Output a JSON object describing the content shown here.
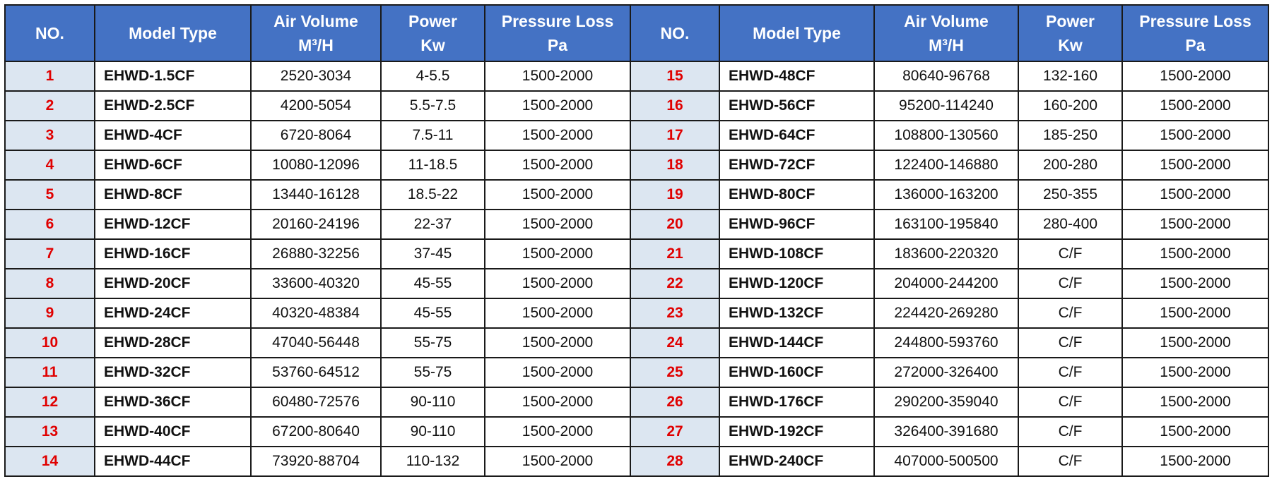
{
  "table": {
    "headers": [
      {
        "line1": "NO."
      },
      {
        "line1": "Model Type"
      },
      {
        "line1": "Air Volume",
        "line2": "M³/H"
      },
      {
        "line1": "Power",
        "line2": "Kw"
      },
      {
        "line1": "Pressure Loss",
        "line2": "Pa"
      },
      {
        "line1": "NO."
      },
      {
        "line1": "Model Type"
      },
      {
        "line1": "Air Volume",
        "line2": "M³/H"
      },
      {
        "line1": "Power",
        "line2": "Kw"
      },
      {
        "line1": "Pressure Loss",
        "line2": "Pa"
      }
    ],
    "rows": [
      [
        "1",
        "EHWD-1.5CF",
        "2520-3034",
        "4-5.5",
        "1500-2000",
        "15",
        "EHWD-48CF",
        "80640-96768",
        "132-160",
        "1500-2000"
      ],
      [
        "2",
        "EHWD-2.5CF",
        "4200-5054",
        "5.5-7.5",
        "1500-2000",
        "16",
        "EHWD-56CF",
        "95200-114240",
        "160-200",
        "1500-2000"
      ],
      [
        "3",
        "EHWD-4CF",
        "6720-8064",
        "7.5-11",
        "1500-2000",
        "17",
        "EHWD-64CF",
        "108800-130560",
        "185-250",
        "1500-2000"
      ],
      [
        "4",
        "EHWD-6CF",
        "10080-12096",
        "11-18.5",
        "1500-2000",
        "18",
        "EHWD-72CF",
        "122400-146880",
        "200-280",
        "1500-2000"
      ],
      [
        "5",
        "EHWD-8CF",
        "13440-16128",
        "18.5-22",
        "1500-2000",
        "19",
        "EHWD-80CF",
        "136000-163200",
        "250-355",
        "1500-2000"
      ],
      [
        "6",
        "EHWD-12CF",
        "20160-24196",
        "22-37",
        "1500-2000",
        "20",
        "EHWD-96CF",
        "163100-195840",
        "280-400",
        "1500-2000"
      ],
      [
        "7",
        "EHWD-16CF",
        "26880-32256",
        "37-45",
        "1500-2000",
        "21",
        "EHWD-108CF",
        "183600-220320",
        "C/F",
        "1500-2000"
      ],
      [
        "8",
        "EHWD-20CF",
        "33600-40320",
        "45-55",
        "1500-2000",
        "22",
        "EHWD-120CF",
        "204000-244200",
        "C/F",
        "1500-2000"
      ],
      [
        "9",
        "EHWD-24CF",
        "40320-48384",
        "45-55",
        "1500-2000",
        "23",
        "EHWD-132CF",
        "224420-269280",
        "C/F",
        "1500-2000"
      ],
      [
        "10",
        "EHWD-28CF",
        "47040-56448",
        "55-75",
        "1500-2000",
        "24",
        "EHWD-144CF",
        "244800-593760",
        "C/F",
        "1500-2000"
      ],
      [
        "11",
        "EHWD-32CF",
        "53760-64512",
        "55-75",
        "1500-2000",
        "25",
        "EHWD-160CF",
        "272000-326400",
        "C/F",
        "1500-2000"
      ],
      [
        "12",
        "EHWD-36CF",
        "60480-72576",
        "90-110",
        "1500-2000",
        "26",
        "EHWD-176CF",
        "290200-359040",
        "C/F",
        "1500-2000"
      ],
      [
        "13",
        "EHWD-40CF",
        "67200-80640",
        "90-110",
        "1500-2000",
        "27",
        "EHWD-192CF",
        "326400-391680",
        "C/F",
        "1500-2000"
      ],
      [
        "14",
        "EHWD-44CF",
        "73920-88704",
        "110-132",
        "1500-2000",
        "28",
        "EHWD-240CF",
        "407000-500500",
        "C/F",
        "1500-2000"
      ]
    ]
  }
}
